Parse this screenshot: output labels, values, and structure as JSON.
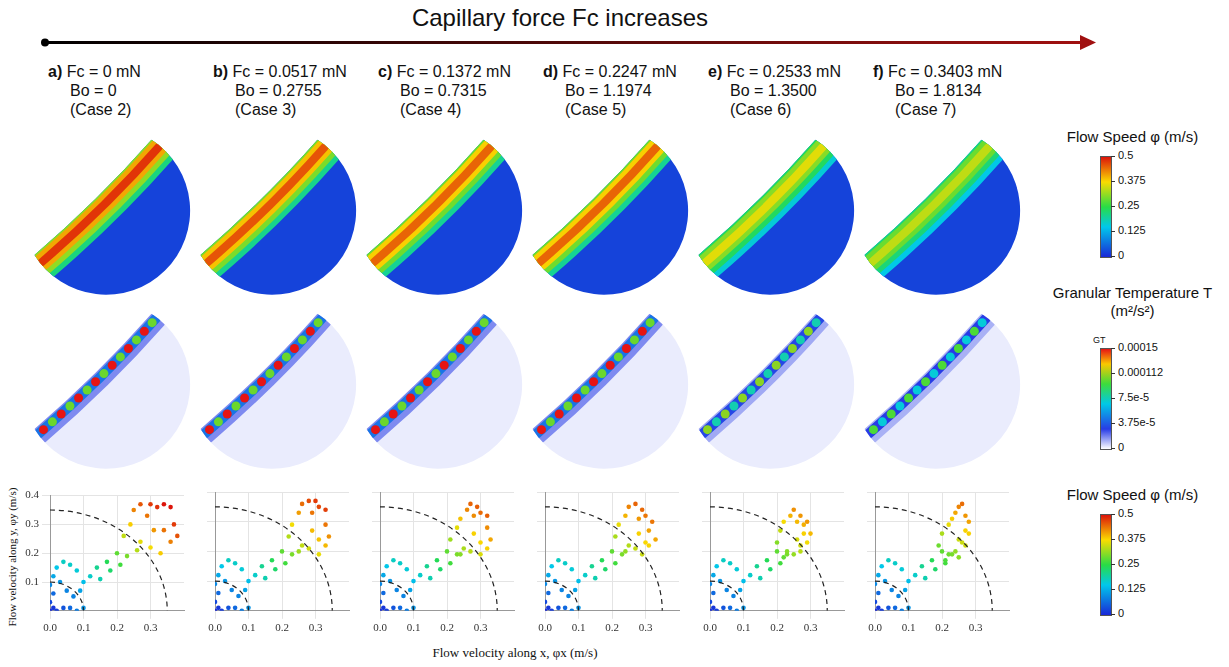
{
  "header": "Capillary force Fc increases",
  "panels": [
    {
      "letter": "a)",
      "lines": [
        "Fc = 0 mN",
        "Bo = 0",
        "(Case 2)"
      ],
      "peak_flow_speed": 0.48,
      "peak_granular_temperature": 0.00015
    },
    {
      "letter": "b)",
      "lines": [
        "Fc = 0.0517 mN",
        "Bo = 0.2755",
        "(Case 3)"
      ],
      "peak_flow_speed": 0.46,
      "peak_granular_temperature": 0.00015
    },
    {
      "letter": "c)",
      "lines": [
        "Fc = 0.1372 mN",
        "Bo = 0.7315",
        "(Case 4)"
      ],
      "peak_flow_speed": 0.45,
      "peak_granular_temperature": 0.00015
    },
    {
      "letter": "d)",
      "lines": [
        "Fc = 0.2247 mN",
        "Bo = 1.1974",
        "(Case 5)"
      ],
      "peak_flow_speed": 0.45,
      "peak_granular_temperature": 0.00015
    },
    {
      "letter": "e)",
      "lines": [
        "Fc = 0.2533 mN",
        "Bo = 1.3500",
        "(Case 6)"
      ],
      "peak_flow_speed": 0.36,
      "peak_granular_temperature": 0.00011
    },
    {
      "letter": "f)",
      "lines": [
        "Fc = 0.3403 mN",
        "Bo = 1.8134",
        "(Case 7)"
      ],
      "peak_flow_speed": 0.34,
      "peak_granular_temperature": 0.0001
    }
  ],
  "colorbars": [
    {
      "title": "Flow Speed φ (m/s)",
      "range": [
        0,
        0.5
      ],
      "ticks": [
        0,
        0.125,
        0.25,
        0.375,
        0.5
      ]
    },
    {
      "title": "Granular Temperature T (m²/s²)",
      "label": "GT",
      "range": [
        0,
        0.00015
      ],
      "ticks": [
        0,
        {
          "value": 3.75e-05,
          "label": "3.75e-5"
        },
        {
          "value": 7.5e-05,
          "label": "7.5e-5"
        },
        0.000112,
        0.00015
      ]
    },
    {
      "title": "Flow Speed φ (m/s)",
      "range": [
        0,
        0.5
      ],
      "ticks": [
        0,
        0.125,
        0.25,
        0.375,
        0.5
      ]
    }
  ],
  "axis_titles": {
    "x": "Flow velocity along x, φx (m/s)",
    "y": "Flow velocity along y, φy (m/s)"
  },
  "chart_data": [
    {
      "type": "scatter",
      "x": [
        0,
        0.01,
        0.02,
        0.04,
        0.06,
        0.08,
        0.1,
        0,
        0.01,
        0,
        0.01,
        0.02,
        0.04,
        0.06,
        0.08,
        0.03,
        0.05,
        0.07,
        0.09,
        0.1,
        0.12,
        0.14,
        0.15,
        0.17,
        0.18,
        0.2,
        0.21,
        0.23,
        0.22,
        0.24,
        0.25,
        0.27,
        0.29,
        0.3,
        0.32,
        0.34,
        0.36,
        0.27,
        0.3,
        0.33,
        0.36,
        0.38,
        0.37,
        0.31,
        0.26,
        0.34
      ],
      "values": [
        0,
        0.01,
        0,
        0.01,
        0.01,
        0,
        0.01,
        0.03,
        0.06,
        0.09,
        0.12,
        0.15,
        0.17,
        0.16,
        0.14,
        0.1,
        0.07,
        0.05,
        0.07,
        0.1,
        0.12,
        0.15,
        0.11,
        0.17,
        0.14,
        0.2,
        0.16,
        0.19,
        0.26,
        0.3,
        0.35,
        0.37,
        0.33,
        0.37,
        0.36,
        0.37,
        0.36,
        0.24,
        0.22,
        0.2,
        0.24,
        0.26,
        0.3,
        0.28,
        0.21,
        0.28
      ],
      "xlim": [
        0,
        0.4
      ],
      "ylim": [
        0,
        0.4
      ],
      "xticks": [
        {
          "value": 0,
          "label": "0.0"
        },
        0.1,
        0.2,
        0.3
      ],
      "yticks": [
        0.1,
        0.2,
        0.3,
        0.4
      ],
      "grid": true,
      "reference_radii": [
        0.1,
        0.35
      ],
      "line_style": "dashed"
    },
    {
      "type": "scatter",
      "x": [
        0,
        0.01,
        0.02,
        0.04,
        0.06,
        0.08,
        0.1,
        0,
        0.01,
        0,
        0.01,
        0.02,
        0.04,
        0.06,
        0.08,
        0.03,
        0.05,
        0.07,
        0.09,
        0.1,
        0.12,
        0.14,
        0.15,
        0.17,
        0.18,
        0.2,
        0.21,
        0.23,
        0.22,
        0.23,
        0.25,
        0.26,
        0.28,
        0.29,
        0.3,
        0.31,
        0.33,
        0.26,
        0.28,
        0.31,
        0.33,
        0.34,
        0.33,
        0.29,
        0.25,
        0.31
      ],
      "values": [
        0,
        0.01,
        0,
        0.01,
        0.01,
        0,
        0.01,
        0.03,
        0.06,
        0.09,
        0.12,
        0.15,
        0.17,
        0.16,
        0.14,
        0.1,
        0.07,
        0.05,
        0.07,
        0.1,
        0.12,
        0.15,
        0.11,
        0.17,
        0.14,
        0.2,
        0.16,
        0.19,
        0.25,
        0.29,
        0.33,
        0.36,
        0.37,
        0.33,
        0.37,
        0.35,
        0.34,
        0.22,
        0.21,
        0.19,
        0.22,
        0.25,
        0.29,
        0.27,
        0.2,
        0.24
      ],
      "xlim": [
        0,
        0.4
      ],
      "ylim": [
        0,
        0.4
      ],
      "xticks": [
        {
          "value": 0,
          "label": "0.0"
        },
        0.1,
        0.2,
        0.3
      ],
      "yticks": [
        0.1,
        0.2,
        0.3,
        0.4
      ],
      "grid": true,
      "tick_labels": "x",
      "reference_radii": [
        0.1,
        0.35
      ],
      "line_style": "dashed"
    },
    {
      "type": "scatter",
      "x": [
        0,
        0.01,
        0.02,
        0.04,
        0.06,
        0.08,
        0.1,
        0,
        0.01,
        0,
        0.01,
        0.02,
        0.04,
        0.06,
        0.08,
        0.03,
        0.05,
        0.07,
        0.09,
        0.1,
        0.12,
        0.14,
        0.15,
        0.17,
        0.18,
        0.2,
        0.21,
        0.23,
        0.21,
        0.23,
        0.24,
        0.26,
        0.27,
        0.28,
        0.29,
        0.3,
        0.32,
        0.25,
        0.27,
        0.3,
        0.32,
        0.33,
        0.32,
        0.28,
        0.24,
        0.3
      ],
      "values": [
        0,
        0.01,
        0,
        0.01,
        0.01,
        0,
        0.01,
        0.03,
        0.06,
        0.09,
        0.12,
        0.15,
        0.17,
        0.16,
        0.14,
        0.1,
        0.07,
        0.05,
        0.07,
        0.1,
        0.12,
        0.15,
        0.11,
        0.17,
        0.14,
        0.2,
        0.16,
        0.19,
        0.24,
        0.28,
        0.31,
        0.34,
        0.36,
        0.32,
        0.35,
        0.33,
        0.32,
        0.21,
        0.2,
        0.19,
        0.21,
        0.24,
        0.28,
        0.26,
        0.19,
        0.23
      ],
      "xlim": [
        0,
        0.4
      ],
      "ylim": [
        0,
        0.4
      ],
      "xticks": [
        {
          "value": 0,
          "label": "0.0"
        },
        0.1,
        0.2,
        0.3
      ],
      "yticks": [
        0.1,
        0.2,
        0.3,
        0.4
      ],
      "grid": true,
      "tick_labels": "x",
      "reference_radii": [
        0.1,
        0.35
      ],
      "line_style": "dashed"
    },
    {
      "type": "scatter",
      "x": [
        0,
        0.01,
        0.02,
        0.04,
        0.06,
        0.08,
        0.1,
        0,
        0.01,
        0,
        0.01,
        0.02,
        0.04,
        0.06,
        0.08,
        0.03,
        0.05,
        0.07,
        0.09,
        0.1,
        0.12,
        0.14,
        0.15,
        0.17,
        0.18,
        0.2,
        0.21,
        0.23,
        0.21,
        0.22,
        0.24,
        0.25,
        0.27,
        0.28,
        0.29,
        0.3,
        0.32,
        0.25,
        0.27,
        0.29,
        0.31,
        0.33,
        0.31,
        0.28,
        0.24,
        0.3
      ],
      "values": [
        0,
        0.01,
        0,
        0.01,
        0.01,
        0,
        0.01,
        0.03,
        0.06,
        0.09,
        0.12,
        0.15,
        0.17,
        0.16,
        0.14,
        0.1,
        0.07,
        0.05,
        0.07,
        0.1,
        0.12,
        0.15,
        0.11,
        0.17,
        0.14,
        0.2,
        0.16,
        0.19,
        0.25,
        0.29,
        0.32,
        0.35,
        0.36,
        0.31,
        0.34,
        0.32,
        0.3,
        0.22,
        0.21,
        0.19,
        0.22,
        0.24,
        0.27,
        0.26,
        0.2,
        0.23
      ],
      "xlim": [
        0,
        0.4
      ],
      "ylim": [
        0,
        0.4
      ],
      "xticks": [
        {
          "value": 0,
          "label": "0.0"
        },
        0.1,
        0.2,
        0.3
      ],
      "yticks": [
        0.1,
        0.2,
        0.3,
        0.4
      ],
      "grid": true,
      "tick_labels": "x",
      "reference_radii": [
        0.1,
        0.35
      ],
      "line_style": "dashed"
    },
    {
      "type": "scatter",
      "x": [
        0,
        0.01,
        0.02,
        0.04,
        0.06,
        0.08,
        0.1,
        0,
        0.01,
        0,
        0.01,
        0.02,
        0.04,
        0.06,
        0.08,
        0.03,
        0.05,
        0.07,
        0.09,
        0.1,
        0.12,
        0.14,
        0.15,
        0.17,
        0.18,
        0.2,
        0.21,
        0.23,
        0.2,
        0.21,
        0.22,
        0.24,
        0.25,
        0.26,
        0.27,
        0.28,
        0.29,
        0.23,
        0.25,
        0.27,
        0.29,
        0.3,
        0.28,
        0.26,
        0.22,
        0.27
      ],
      "values": [
        0,
        0.01,
        0,
        0.01,
        0.01,
        0,
        0.01,
        0.03,
        0.06,
        0.09,
        0.12,
        0.15,
        0.17,
        0.16,
        0.14,
        0.1,
        0.07,
        0.05,
        0.07,
        0.1,
        0.12,
        0.15,
        0.11,
        0.17,
        0.14,
        0.2,
        0.16,
        0.19,
        0.23,
        0.27,
        0.3,
        0.32,
        0.34,
        0.3,
        0.32,
        0.29,
        0.3,
        0.2,
        0.19,
        0.2,
        0.23,
        0.26,
        0.26,
        0.24,
        0.18,
        0.22
      ],
      "xlim": [
        0,
        0.4
      ],
      "ylim": [
        0,
        0.4
      ],
      "xticks": [
        {
          "value": 0,
          "label": "0.0"
        },
        0.1,
        0.2,
        0.3
      ],
      "yticks": [
        0.1,
        0.2,
        0.3,
        0.4
      ],
      "grid": true,
      "tick_labels": "x",
      "reference_radii": [
        0.1,
        0.35
      ],
      "line_style": "dashed"
    },
    {
      "type": "scatter",
      "x": [
        0,
        0.01,
        0.02,
        0.04,
        0.06,
        0.08,
        0.1,
        0,
        0.01,
        0,
        0.01,
        0.02,
        0.04,
        0.06,
        0.08,
        0.03,
        0.05,
        0.07,
        0.09,
        0.1,
        0.12,
        0.14,
        0.15,
        0.17,
        0.18,
        0.2,
        0.21,
        0.23,
        0.19,
        0.2,
        0.22,
        0.23,
        0.24,
        0.25,
        0.26,
        0.27,
        0.28,
        0.22,
        0.24,
        0.25,
        0.27,
        0.28,
        0.27,
        0.25,
        0.21,
        0.26
      ],
      "values": [
        0,
        0.01,
        0,
        0.01,
        0.01,
        0,
        0.01,
        0.03,
        0.06,
        0.09,
        0.12,
        0.15,
        0.17,
        0.16,
        0.14,
        0.1,
        0.07,
        0.05,
        0.07,
        0.1,
        0.12,
        0.15,
        0.11,
        0.17,
        0.14,
        0.2,
        0.16,
        0.19,
        0.22,
        0.26,
        0.29,
        0.31,
        0.33,
        0.35,
        0.36,
        0.32,
        0.3,
        0.19,
        0.2,
        0.18,
        0.22,
        0.26,
        0.27,
        0.24,
        0.17,
        0.23
      ],
      "xlim": [
        0,
        0.4
      ],
      "ylim": [
        0,
        0.4
      ],
      "xticks": [
        {
          "value": 0,
          "label": "0.0"
        },
        0.1,
        0.2,
        0.3
      ],
      "yticks": [
        0.1,
        0.2,
        0.3,
        0.4
      ],
      "grid": true,
      "tick_labels": "x",
      "reference_radii": [
        0.1,
        0.35
      ],
      "line_style": "dashed"
    }
  ]
}
